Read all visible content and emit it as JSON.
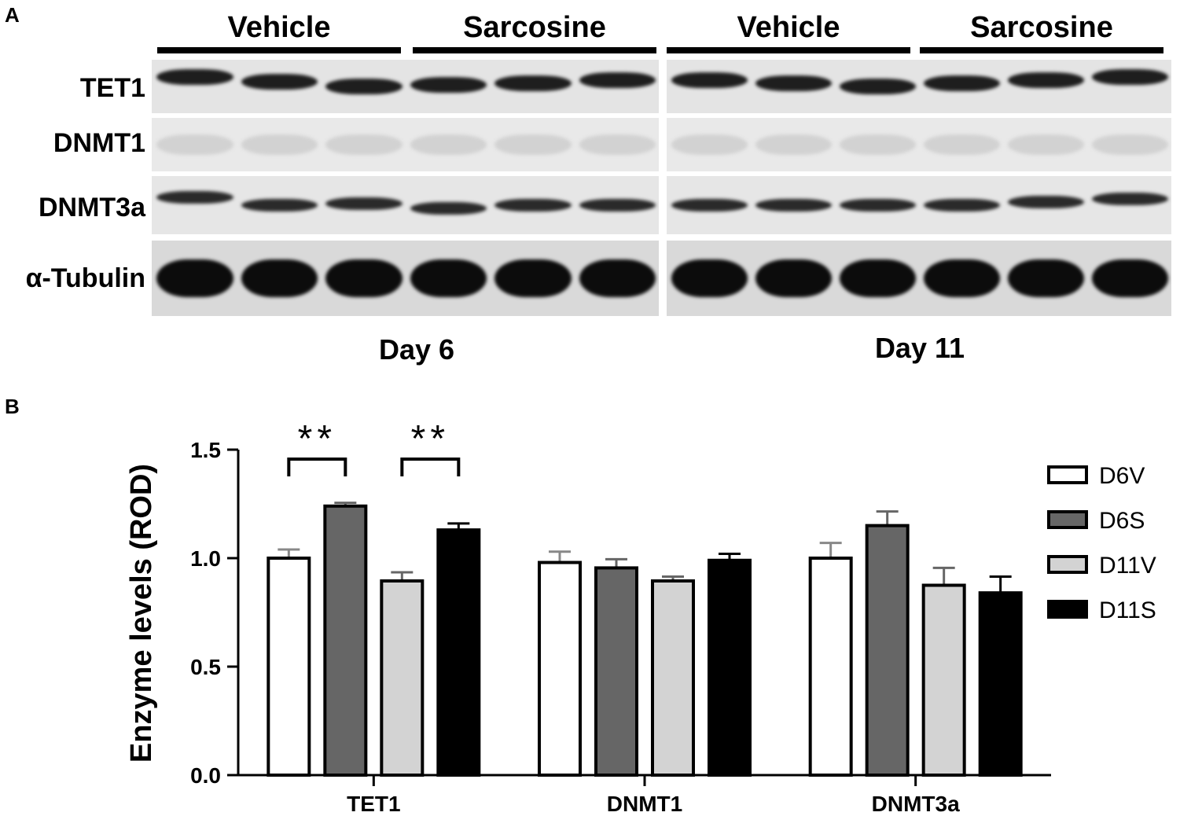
{
  "panels": {
    "a": "A",
    "b": "B"
  },
  "blot": {
    "groups": [
      "Vehicle",
      "Sarcosine",
      "Vehicle",
      "Sarcosine"
    ],
    "rows": [
      "TET1",
      "DNMT1",
      "DNMT3a",
      "α-Tubulin"
    ],
    "days": [
      "Day 6",
      "Day 11"
    ]
  },
  "chart_data": {
    "type": "bar",
    "ylabel": "Enzyme levels (ROD)",
    "xlabel": "",
    "ylim": [
      0,
      1.5
    ],
    "yticks": [
      "0.0",
      "0.5",
      "1.0",
      "1.5"
    ],
    "categories": [
      "TET1",
      "DNMT1",
      "DNMT3a"
    ],
    "series": [
      {
        "name": "D6V",
        "values": [
          1.0,
          0.98,
          1.0
        ],
        "errors": [
          0.04,
          0.05,
          0.07
        ],
        "color": "#ffffff"
      },
      {
        "name": "D6S",
        "values": [
          1.24,
          0.955,
          1.15
        ],
        "errors": [
          0.015,
          0.04,
          0.065
        ],
        "color": "#666666"
      },
      {
        "name": "D11V",
        "values": [
          0.895,
          0.895,
          0.875
        ],
        "errors": [
          0.04,
          0.02,
          0.08
        ],
        "color": "#d3d3d3"
      },
      {
        "name": "D11S",
        "values": [
          1.13,
          0.99,
          0.84
        ],
        "errors": [
          0.03,
          0.03,
          0.075
        ],
        "color": "#000000"
      }
    ],
    "annotations": [
      {
        "text": "**",
        "category": "TET1",
        "from_series": "D6V",
        "to_series": "D6S"
      },
      {
        "text": "**",
        "category": "TET1",
        "from_series": "D11V",
        "to_series": "D11S"
      }
    ],
    "legend": "right",
    "grid": false
  }
}
